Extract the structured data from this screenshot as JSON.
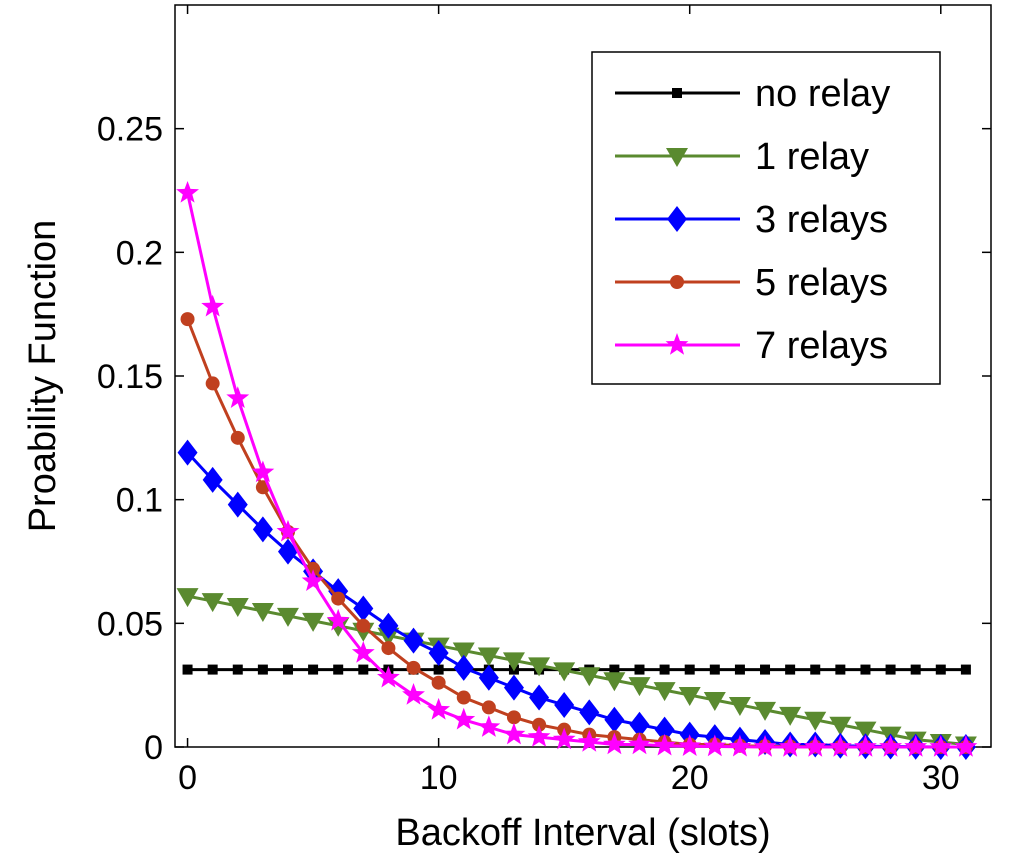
{
  "chart_data": {
    "type": "line",
    "xlabel": "Backoff Interval (slots)",
    "ylabel": "Proability Function",
    "xlim": [
      -0.5,
      32
    ],
    "ylim": [
      0,
      0.3
    ],
    "x_ticks": [
      0,
      10,
      20,
      30
    ],
    "y_ticks": [
      0,
      0.05,
      0.1,
      0.15,
      0.2,
      0.25
    ],
    "y_tick_labels": [
      "0",
      "0.05",
      "0.1",
      "0.15",
      "0.2",
      "0.25"
    ],
    "x_tick_labels": [
      "0",
      "10",
      "20",
      "30"
    ],
    "legend_position": "top-right",
    "grid": false,
    "x": [
      0,
      1,
      2,
      3,
      4,
      5,
      6,
      7,
      8,
      9,
      10,
      11,
      12,
      13,
      14,
      15,
      16,
      17,
      18,
      19,
      20,
      21,
      22,
      23,
      24,
      25,
      26,
      27,
      28,
      29,
      30,
      31
    ],
    "series": [
      {
        "name": "no relay",
        "color": "#000000",
        "marker": "square",
        "values": [
          0.0313,
          0.0313,
          0.0313,
          0.0313,
          0.0313,
          0.0313,
          0.0313,
          0.0313,
          0.0313,
          0.0313,
          0.0313,
          0.0313,
          0.0313,
          0.0313,
          0.0313,
          0.0313,
          0.0313,
          0.0313,
          0.0313,
          0.0313,
          0.0313,
          0.0313,
          0.0313,
          0.0313,
          0.0313,
          0.0313,
          0.0313,
          0.0313,
          0.0313,
          0.0313,
          0.0313,
          0.0313
        ]
      },
      {
        "name": "1 relay",
        "color": "#5a8a2f",
        "marker": "triangle-down",
        "values": [
          0.061,
          0.059,
          0.057,
          0.055,
          0.053,
          0.051,
          0.049,
          0.047,
          0.045,
          0.043,
          0.041,
          0.039,
          0.037,
          0.035,
          0.033,
          0.031,
          0.029,
          0.027,
          0.025,
          0.023,
          0.021,
          0.019,
          0.017,
          0.015,
          0.013,
          0.011,
          0.009,
          0.007,
          0.005,
          0.003,
          0.002,
          0.001
        ]
      },
      {
        "name": "3 relays",
        "color": "#0000ff",
        "marker": "diamond",
        "values": [
          0.119,
          0.108,
          0.098,
          0.088,
          0.079,
          0.071,
          0.063,
          0.056,
          0.049,
          0.043,
          0.038,
          0.032,
          0.028,
          0.024,
          0.02,
          0.017,
          0.014,
          0.011,
          0.009,
          0.007,
          0.005,
          0.004,
          0.003,
          0.002,
          0.001,
          0.001,
          0.0005,
          0.0003,
          0.0002,
          0.0001,
          0.0,
          0.0
        ]
      },
      {
        "name": "5 relays",
        "color": "#c0401f",
        "marker": "circle",
        "values": [
          0.173,
          0.147,
          0.125,
          0.105,
          0.087,
          0.072,
          0.06,
          0.049,
          0.04,
          0.032,
          0.026,
          0.02,
          0.016,
          0.012,
          0.009,
          0.007,
          0.005,
          0.004,
          0.003,
          0.002,
          0.001,
          0.001,
          0.0005,
          0.0003,
          0.0002,
          0.0001,
          0.0,
          0.0,
          0.0,
          0.0,
          0.0,
          0.0
        ]
      },
      {
        "name": "7 relays",
        "color": "#ff00ff",
        "marker": "star",
        "values": [
          0.224,
          0.178,
          0.141,
          0.111,
          0.087,
          0.067,
          0.051,
          0.038,
          0.028,
          0.021,
          0.015,
          0.011,
          0.008,
          0.005,
          0.004,
          0.003,
          0.002,
          0.001,
          0.001,
          0.0005,
          0.0003,
          0.0002,
          0.0001,
          0.0,
          0.0,
          0.0,
          0.0,
          0.0,
          0.0,
          0.0,
          0.0,
          0.0
        ]
      }
    ]
  }
}
